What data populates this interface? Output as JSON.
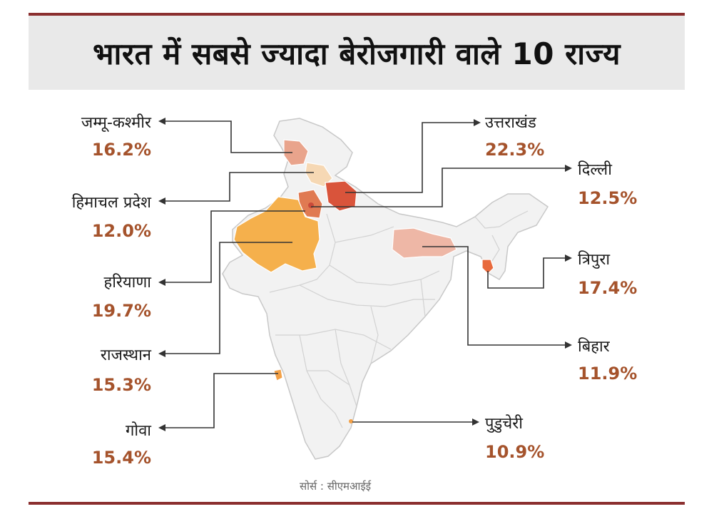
{
  "title": "भारत में सबसे ज्यादा बेरोजगारी वाले 10 राज्य",
  "source": "सोर्स : सीएमआईई",
  "colors": {
    "frame": "#8b2f2f",
    "percent_text": "#a5532c",
    "map_base": "#f2f2f2",
    "uttarakhand": "#d9543b",
    "haryana": "#e07a52",
    "rajasthan": "#f5b04c",
    "jammu_kashmir": "#e9a48c",
    "himachal": "#f6d8b4",
    "bihar": "#eeb7a6",
    "tripura": "#e86a3d",
    "goa": "#f3a046",
    "puducherry": "#f3a046",
    "delhi": "#c94a3a"
  },
  "states": [
    {
      "key": "jk",
      "name": "जम्मू-कश्मीर",
      "value": "16.2%",
      "side": "left"
    },
    {
      "key": "hp",
      "name": "हिमाचल प्रदेश",
      "value": "12.0%",
      "side": "left"
    },
    {
      "key": "hr",
      "name": "हरियाणा",
      "value": "19.7%",
      "side": "left"
    },
    {
      "key": "rj",
      "name": "राजस्थान",
      "value": "15.3%",
      "side": "left"
    },
    {
      "key": "goa",
      "name": "गोवा",
      "value": "15.4%",
      "side": "left"
    },
    {
      "key": "uk",
      "name": "उत्तराखंड",
      "value": "22.3%",
      "side": "right"
    },
    {
      "key": "dl",
      "name": "दिल्ली",
      "value": "12.5%",
      "side": "right"
    },
    {
      "key": "tr",
      "name": "त्रिपुरा",
      "value": "17.4%",
      "side": "right"
    },
    {
      "key": "br",
      "name": "बिहार",
      "value": "11.9%",
      "side": "right"
    },
    {
      "key": "py",
      "name": "पुडुचेरी",
      "value": "10.9%",
      "side": "right"
    }
  ]
}
